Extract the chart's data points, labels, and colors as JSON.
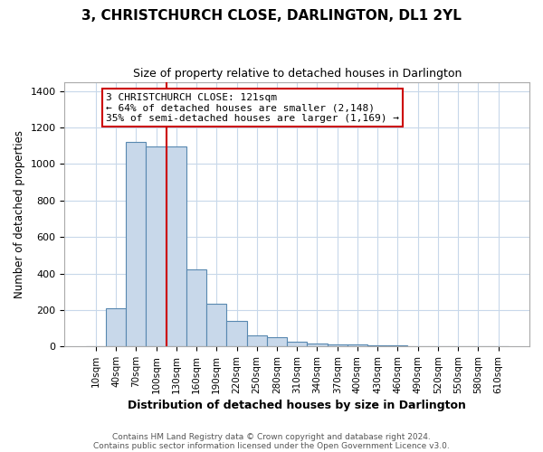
{
  "title": "3, CHRISTCHURCH CLOSE, DARLINGTON, DL1 2YL",
  "subtitle": "Size of property relative to detached houses in Darlington",
  "xlabel": "Distribution of detached houses by size in Darlington",
  "ylabel": "Number of detached properties",
  "bar_labels": [
    "10sqm",
    "40sqm",
    "70sqm",
    "100sqm",
    "130sqm",
    "160sqm",
    "190sqm",
    "220sqm",
    "250sqm",
    "280sqm",
    "310sqm",
    "340sqm",
    "370sqm",
    "400sqm",
    "430sqm",
    "460sqm",
    "490sqm",
    "520sqm",
    "550sqm",
    "580sqm",
    "610sqm"
  ],
  "bar_values": [
    0,
    210,
    1120,
    1095,
    1095,
    425,
    235,
    140,
    60,
    50,
    25,
    15,
    10,
    10,
    5,
    5,
    0,
    0,
    0,
    0,
    0
  ],
  "bar_color": "#c8d8ea",
  "bar_edge_color": "#5888b0",
  "red_line_x": 115,
  "annotation_line1": "3 CHRISTCHURCH CLOSE: 121sqm",
  "annotation_line2": "← 64% of detached houses are smaller (2,148)",
  "annotation_line3": "35% of semi-detached houses are larger (1,169) →",
  "annotation_box_color": "#ffffff",
  "annotation_box_edge": "#cc0000",
  "ylim": [
    0,
    1450
  ],
  "bin_width": 30,
  "footer1": "Contains HM Land Registry data © Crown copyright and database right 2024.",
  "footer2": "Contains public sector information licensed under the Open Government Licence v3.0.",
  "background_color": "#ffffff",
  "plot_background": "#ffffff",
  "grid_color": "#c8d8ea"
}
